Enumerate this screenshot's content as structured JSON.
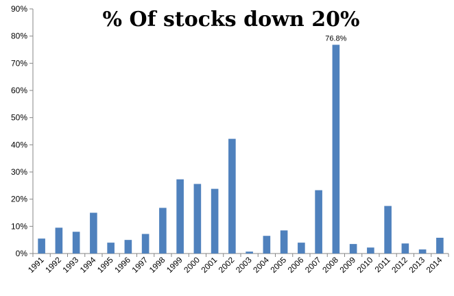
{
  "chart_data": {
    "type": "bar",
    "title": "% Of stocks down 20%",
    "xlabel": "",
    "ylabel": "",
    "ylim": [
      0,
      90
    ],
    "yticks": [
      "0%",
      "10%",
      "20%",
      "30%",
      "40%",
      "50%",
      "60%",
      "70%",
      "80%",
      "90%"
    ],
    "ytick_values": [
      0,
      10,
      20,
      30,
      40,
      50,
      60,
      70,
      80,
      90
    ],
    "grid": false,
    "legend": "none",
    "bar_color": "#4F81BD",
    "categories": [
      "1991",
      "1992",
      "1993",
      "1994",
      "1995",
      "1996",
      "1997",
      "1998",
      "1999",
      "2000",
      "2001",
      "2002",
      "2003",
      "2004",
      "2005",
      "2006",
      "2007",
      "2008",
      "2009",
      "2010",
      "2011",
      "2012",
      "2013",
      "2014"
    ],
    "values": [
      5.5,
      9.5,
      8.0,
      15.0,
      4.0,
      5.0,
      7.2,
      16.8,
      27.3,
      25.6,
      23.8,
      42.2,
      0.7,
      6.5,
      8.5,
      4.0,
      23.3,
      76.8,
      3.5,
      2.2,
      17.5,
      3.7,
      1.5,
      5.8
    ],
    "annotations": [
      {
        "category": "2008",
        "text": "76.8%"
      }
    ]
  }
}
